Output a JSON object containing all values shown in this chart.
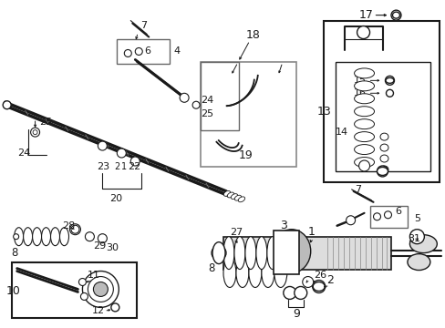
{
  "bg_color": "#ffffff",
  "lc": "#1a1a1a",
  "fig_width": 4.89,
  "fig_height": 3.6,
  "dpi": 100,
  "gray1": "#bbbbbb",
  "gray2": "#888888",
  "gray3": "#dddddd"
}
